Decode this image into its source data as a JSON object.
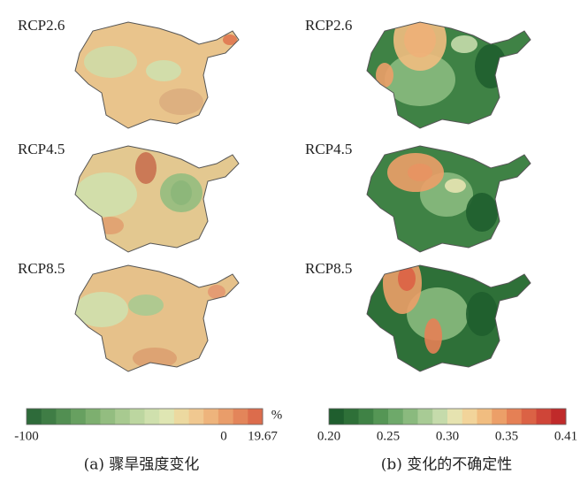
{
  "panels": [
    {
      "caption": "(a) 骤旱强度变化",
      "unit": "%",
      "colorbar_labels": [
        "-100",
        "0",
        "19.67"
      ],
      "maps": [
        {
          "label": "RCP2.6"
        },
        {
          "label": "RCP4.5"
        },
        {
          "label": "RCP8.5"
        }
      ]
    },
    {
      "caption": "(b) 变化的不确定性",
      "unit": null,
      "colorbar_labels": [
        "0.20",
        "0.25",
        "0.30",
        "0.35",
        "0.41"
      ],
      "maps": [
        {
          "label": "RCP2.6"
        },
        {
          "label": "RCP4.5"
        },
        {
          "label": "RCP8.5"
        }
      ]
    }
  ]
}
